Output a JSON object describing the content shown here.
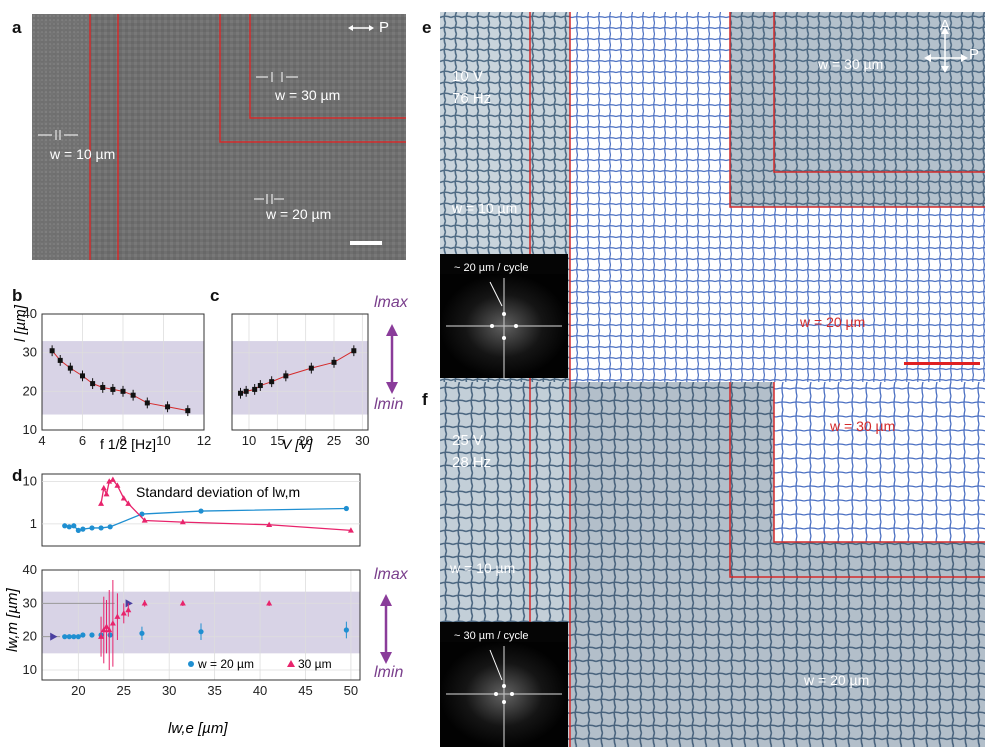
{
  "panels": {
    "a": {
      "label": "a",
      "polarizer": "P",
      "w_labels": [
        "w = 10 µm",
        "w = 20 µm",
        "w = 30 µm"
      ]
    },
    "b": {
      "label": "b",
      "ylabel": "l [µm]",
      "xlabel": "f 1/2 [Hz]",
      "xticks": [
        "4",
        "6",
        "8",
        "10",
        "12"
      ],
      "yticks": [
        "10",
        "20",
        "30",
        "40"
      ]
    },
    "c": {
      "label": "c",
      "xlabel": "V [V]",
      "xticks": [
        "10",
        "15",
        "20",
        "25",
        "30"
      ],
      "lmax": "lmax",
      "lmin": "lmin"
    },
    "d": {
      "label": "d",
      "top_title": "Standard deviation of lw,m",
      "top_yticks": [
        "1",
        "10"
      ],
      "bottom_ylabel": "lw,m [µm]",
      "bottom_yticks": [
        "10",
        "20",
        "30",
        "40"
      ],
      "xlabel": "lw,e [µm]",
      "xticks": [
        "20",
        "25",
        "30",
        "35",
        "40",
        "45",
        "50"
      ],
      "legend": [
        "w = 20 µm",
        "30 µm"
      ],
      "lmax": "lmax",
      "lmin": "lmin"
    },
    "e": {
      "label": "e",
      "voltage": "10 V",
      "frequency": "76 Hz",
      "inset_text": "~ 20 µm / cycle",
      "w_labels": [
        "w = 10 µm",
        "w = 20 µm",
        "w = 30 µm"
      ],
      "axes": [
        "A",
        "P"
      ]
    },
    "f": {
      "label": "f",
      "voltage": "25 V",
      "frequency": "28 Hz",
      "inset_text": "~ 30 µm / cycle",
      "w_labels": [
        "w = 10 µm",
        "w = 20 µm",
        "w = 30 µm"
      ]
    }
  },
  "chart_data": [
    {
      "type": "scatter",
      "panel": "b",
      "x": [
        4.5,
        4.9,
        5.4,
        6.0,
        6.5,
        7.0,
        7.5,
        8.0,
        8.5,
        9.2,
        10.2,
        11.2
      ],
      "y": [
        30.5,
        28,
        26,
        24,
        22,
        21,
        20.5,
        20,
        19,
        17,
        16,
        15
      ],
      "xlim": [
        4,
        12
      ],
      "ylim": [
        10,
        40
      ],
      "xlabel": "f 1/2 [Hz]",
      "ylabel": "l [µm]",
      "band": [
        14,
        33
      ]
    },
    {
      "type": "scatter",
      "panel": "c",
      "x": [
        8.5,
        9.5,
        11,
        12,
        14,
        16.5,
        21,
        25,
        28.5
      ],
      "y": [
        19.5,
        20,
        20.5,
        21.5,
        22.5,
        24,
        26,
        27.5,
        30.5
      ],
      "xlim": [
        7,
        31
      ],
      "ylim": [
        10,
        40
      ],
      "xlabel": "V [V]",
      "band": [
        14,
        33
      ]
    },
    {
      "type": "line",
      "panel": "d-top",
      "title": "Standard deviation of lw,m",
      "yscale": "log",
      "ylim": [
        0.3,
        15
      ],
      "xlim": [
        16,
        51
      ],
      "series": [
        {
          "name": "w = 20 µm",
          "color": "#1f8fd1",
          "x": [
            18.5,
            19,
            19.5,
            20,
            20.5,
            21.5,
            22.5,
            23.5,
            27,
            33.5,
            49.5
          ],
          "y": [
            0.9,
            0.85,
            0.9,
            0.7,
            0.75,
            0.8,
            0.8,
            0.85,
            1.7,
            2.0,
            2.3
          ]
        },
        {
          "name": "30 µm",
          "color": "#e8246c",
          "x": [
            22.5,
            22.8,
            23.1,
            23.4,
            23.8,
            24.3,
            25.0,
            25.5,
            27.3,
            31.5,
            41,
            50
          ],
          "y": [
            3,
            7,
            5,
            10,
            11,
            8,
            4,
            3,
            1.2,
            1.1,
            0.95,
            0.7
          ]
        }
      ]
    },
    {
      "type": "scatter",
      "panel": "d-bottom",
      "xlim": [
        16,
        51
      ],
      "ylim": [
        7,
        40
      ],
      "xlabel": "lw,e [µm]",
      "ylabel": "lw,m [µm]",
      "band": [
        15,
        33.5
      ],
      "series": [
        {
          "name": "w = 20 µm",
          "color": "#1f8fd1",
          "x": [
            18.5,
            19,
            19.5,
            20,
            20.5,
            21.5,
            22.5,
            23.5,
            27,
            33.5,
            49.5
          ],
          "y": [
            20,
            20,
            20,
            20,
            20.5,
            20.5,
            20.5,
            20.5,
            21,
            21.5,
            22
          ],
          "err": [
            0.5,
            0.5,
            0.5,
            0.5,
            0.5,
            0.5,
            0.5,
            0.5,
            2,
            2.5,
            2.5
          ]
        },
        {
          "name": "30 µm",
          "color": "#e8246c",
          "x": [
            22.5,
            22.8,
            23.1,
            23.4,
            23.8,
            24.3,
            25.0,
            25.5,
            27.3,
            31.5,
            41
          ],
          "y": [
            20,
            22,
            23,
            22,
            24,
            26,
            27,
            28,
            30,
            30,
            30
          ],
          "err": [
            6,
            10,
            8,
            12,
            13,
            7,
            3,
            2,
            1,
            0.8,
            0.8
          ]
        }
      ]
    }
  ]
}
